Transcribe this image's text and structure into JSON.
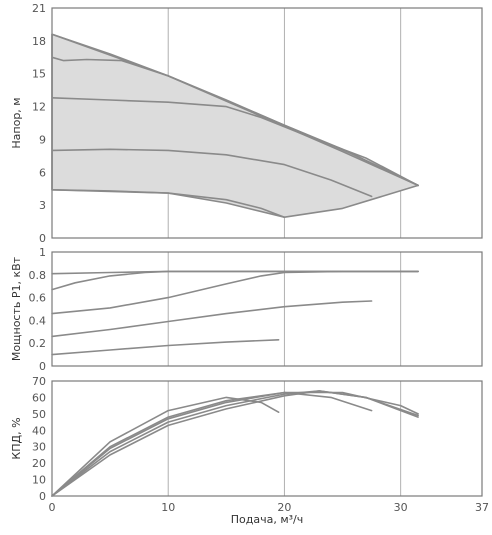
{
  "chart_data": [
    {
      "type": "line",
      "id": "head",
      "ylabel": "Напор, м",
      "xlabel": "",
      "xlim": [
        0,
        37
      ],
      "ylim": [
        0,
        21
      ],
      "xticks": [
        0,
        10,
        20,
        30,
        37
      ],
      "yticks": [
        0,
        3,
        6,
        9,
        12,
        15,
        18,
        21
      ],
      "shaded_envelope": true,
      "envelope_fill": "#dcdcdc",
      "line_color": "#8a8a8a",
      "envelope": [
        [
          0,
          18.6
        ],
        [
          10,
          14.8
        ],
        [
          20,
          10.3
        ],
        [
          26,
          7.6
        ],
        [
          31.5,
          4.8
        ],
        [
          25,
          2.7
        ],
        [
          20,
          1.9
        ],
        [
          15,
          3.2
        ],
        [
          10,
          4.1
        ],
        [
          0,
          4.4
        ]
      ],
      "series": [
        {
          "x": [
            0,
            5,
            10,
            15,
            20,
            25,
            31.5
          ],
          "y": [
            18.6,
            16.8,
            14.8,
            12.6,
            10.3,
            8.1,
            4.8
          ]
        },
        {
          "x": [
            0,
            1,
            3,
            6,
            10,
            15,
            20,
            25,
            31.5
          ],
          "y": [
            16.5,
            16.2,
            16.3,
            16.2,
            14.8,
            12.5,
            10.2,
            7.9,
            4.8
          ]
        },
        {
          "x": [
            0,
            5,
            10,
            15,
            18,
            22,
            27,
            31.5
          ],
          "y": [
            12.8,
            12.6,
            12.4,
            12.0,
            11.0,
            9.3,
            7.3,
            4.8
          ]
        },
        {
          "x": [
            0,
            5,
            10,
            15,
            20,
            24,
            27.5
          ],
          "y": [
            8.0,
            8.1,
            8.0,
            7.6,
            6.7,
            5.3,
            3.8
          ]
        },
        {
          "x": [
            0,
            5,
            10,
            15,
            18,
            20
          ],
          "y": [
            4.4,
            4.3,
            4.1,
            3.5,
            2.7,
            1.9
          ]
        }
      ]
    },
    {
      "type": "line",
      "id": "power",
      "ylabel": "Мощность P1, кВт",
      "xlabel": "",
      "xlim": [
        0,
        37
      ],
      "ylim": [
        0,
        1
      ],
      "xticks": [
        0,
        10,
        20,
        30,
        37
      ],
      "yticks": [
        0,
        0.2,
        0.4,
        0.6,
        0.8,
        1
      ],
      "line_color": "#8a8a8a",
      "series": [
        {
          "x": [
            0,
            5,
            10,
            15,
            20,
            25,
            31.5
          ],
          "y": [
            0.81,
            0.82,
            0.83,
            0.83,
            0.83,
            0.83,
            0.83
          ]
        },
        {
          "x": [
            0,
            2,
            5,
            8,
            10,
            15,
            20,
            25,
            31.5
          ],
          "y": [
            0.67,
            0.73,
            0.79,
            0.82,
            0.83,
            0.83,
            0.83,
            0.83,
            0.83
          ]
        },
        {
          "x": [
            0,
            5,
            10,
            15,
            18,
            20,
            25,
            31.5
          ],
          "y": [
            0.46,
            0.51,
            0.6,
            0.72,
            0.79,
            0.82,
            0.83,
            0.83
          ]
        },
        {
          "x": [
            0,
            5,
            10,
            15,
            20,
            25,
            27.5
          ],
          "y": [
            0.26,
            0.32,
            0.39,
            0.46,
            0.52,
            0.56,
            0.57
          ]
        },
        {
          "x": [
            0,
            5,
            10,
            15,
            19.5
          ],
          "y": [
            0.1,
            0.14,
            0.18,
            0.21,
            0.23
          ]
        }
      ]
    },
    {
      "type": "line",
      "id": "efficiency",
      "ylabel": "КПД, %",
      "xlabel": "Подача, м³/ч",
      "xlim": [
        0,
        37
      ],
      "ylim": [
        0,
        70
      ],
      "xticks": [
        0,
        10,
        20,
        30,
        37
      ],
      "yticks": [
        0,
        10,
        20,
        30,
        40,
        50,
        60,
        70
      ],
      "line_color": "#8a8a8a",
      "series": [
        {
          "x": [
            0,
            5,
            10,
            15,
            18,
            19.5
          ],
          "y": [
            0,
            33,
            52,
            60,
            57,
            51
          ]
        },
        {
          "x": [
            0,
            5,
            10,
            15,
            20,
            24,
            27.5
          ],
          "y": [
            0,
            30,
            48,
            58,
            63,
            60,
            52
          ]
        },
        {
          "x": [
            0,
            5,
            10,
            15,
            20,
            25,
            30,
            31.5
          ],
          "y": [
            0,
            29,
            47,
            57,
            63,
            63,
            55,
            50
          ]
        },
        {
          "x": [
            0,
            5,
            10,
            15,
            20,
            23,
            27,
            31.5
          ],
          "y": [
            0,
            27,
            45,
            55,
            62,
            64,
            60,
            48
          ]
        },
        {
          "x": [
            0,
            5,
            10,
            15,
            20,
            23,
            27,
            31.5
          ],
          "y": [
            0,
            25,
            43,
            53,
            61,
            64,
            60,
            49
          ]
        }
      ]
    }
  ]
}
